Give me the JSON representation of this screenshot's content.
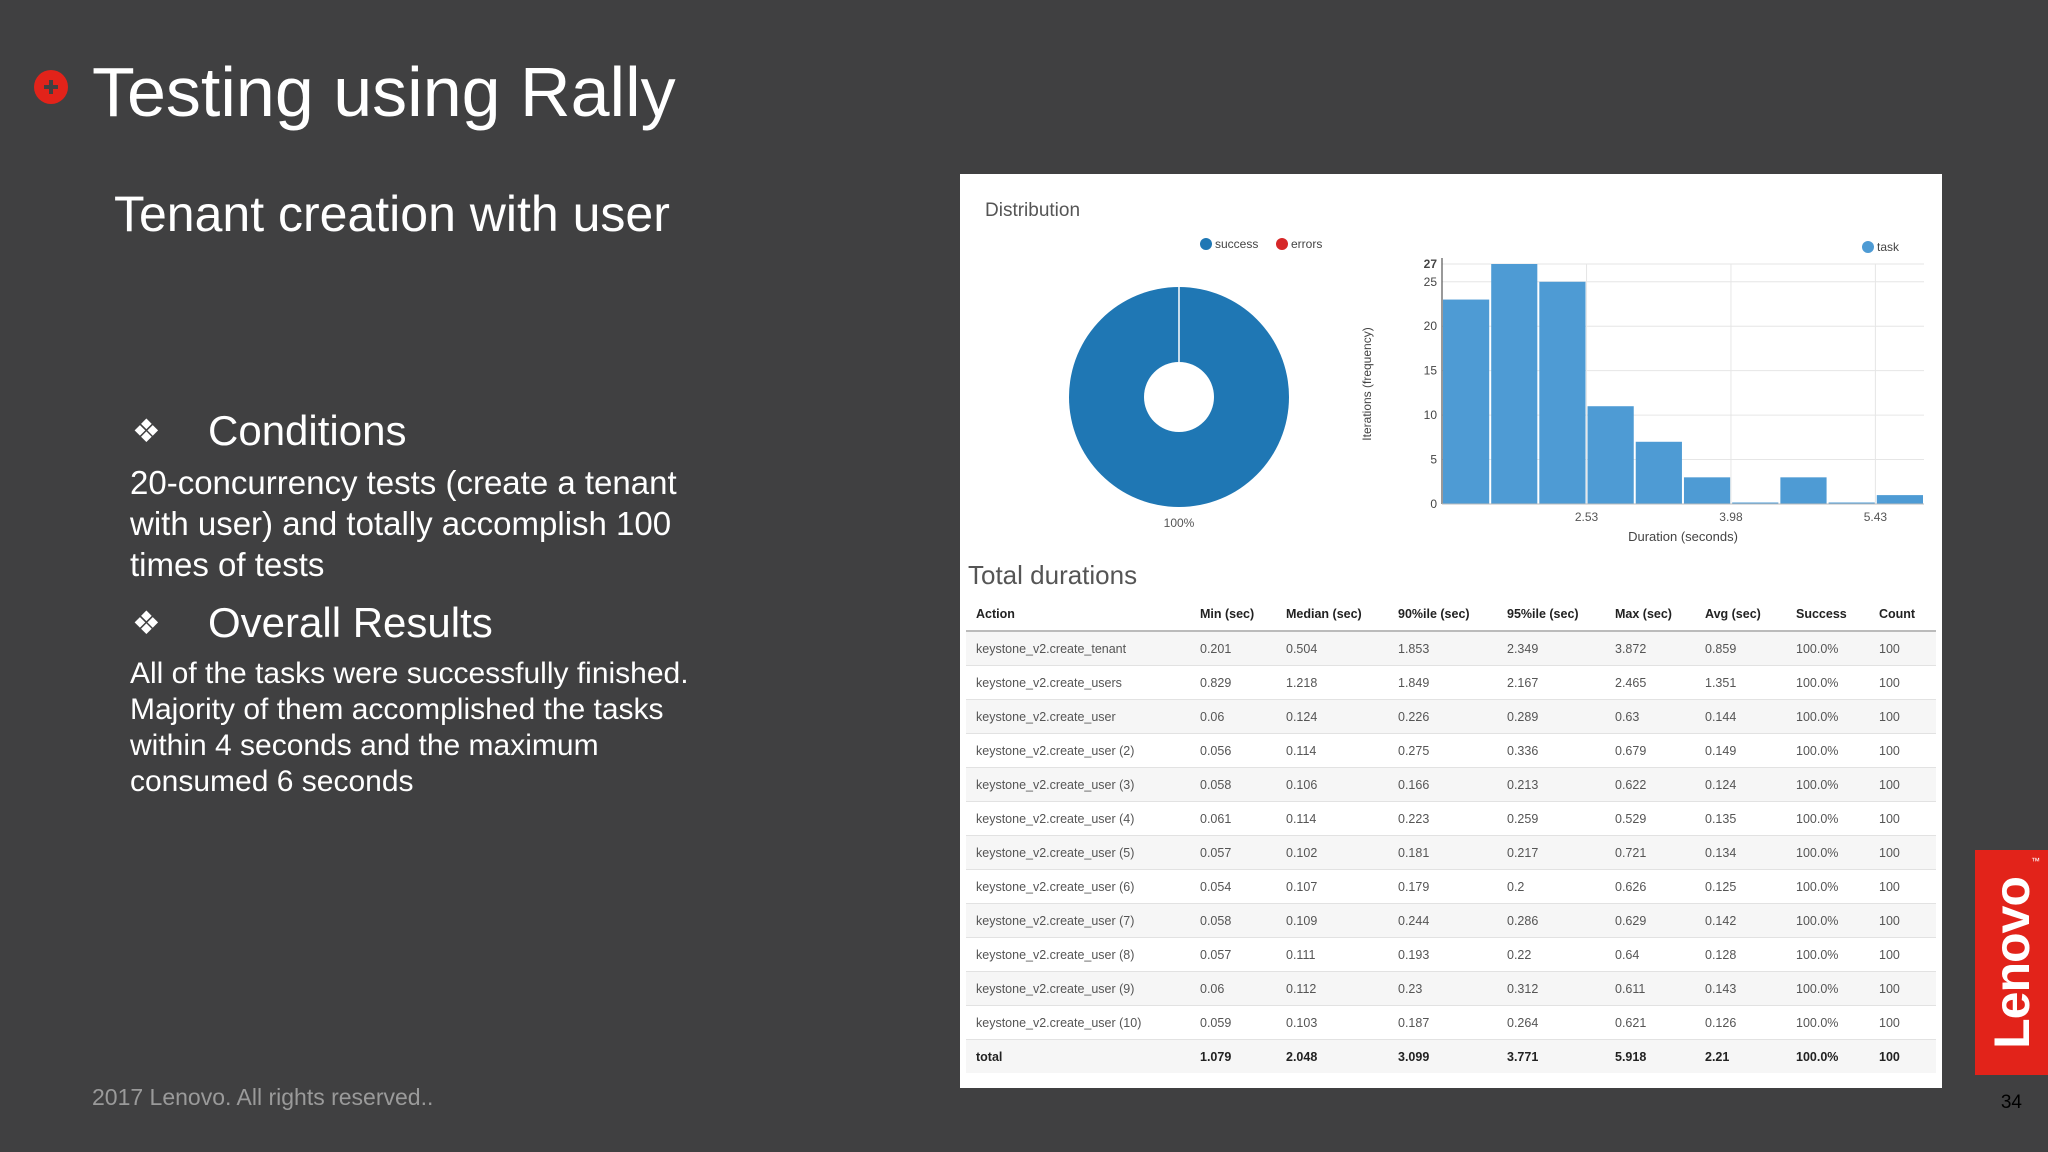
{
  "slide": {
    "title": "Testing using Rally",
    "subtitle": "Tenant creation with user",
    "conditions_heading": "Conditions",
    "conditions_text": "20-concurrency tests (create a tenant with user) and totally accomplish 100 times of tests",
    "results_heading": "Overall Results",
    "results_text": "All of the tasks were successfully finished. Majority of them accomplished the tasks within 4 seconds and the maximum consumed 6 seconds",
    "bullet_symbol": "❖",
    "footer": "2017 Lenovo. All rights reserved..",
    "page_number": "34",
    "brand": "Lenovo",
    "brand_tm": "™",
    "colors": {
      "background": "#404041",
      "brand_red": "#e2231a"
    }
  },
  "panel": {
    "distribution_title": "Distribution",
    "total_durations_title": "Total durations"
  },
  "chart_data": [
    {
      "type": "pie",
      "legend": [
        "success",
        "errors"
      ],
      "legend_colors": [
        "#1f77b4",
        "#d62728"
      ],
      "slices": [
        {
          "name": "success",
          "value": 100,
          "color": "#1f77b4"
        },
        {
          "name": "errors",
          "value": 0,
          "color": "#d62728"
        }
      ],
      "slice_label": "100%",
      "legend_placement": "top"
    },
    {
      "type": "bar",
      "series": [
        {
          "name": "task",
          "color": "#4e9bd4",
          "values": [
            23,
            27,
            25,
            11,
            7,
            3,
            0,
            3,
            0,
            1
          ]
        }
      ],
      "bin_edges": [
        1.079,
        1.563,
        2.046,
        2.53,
        3.014,
        3.498,
        3.982,
        4.466,
        4.95,
        5.434,
        5.918
      ],
      "xtick_values": [
        2.53,
        3.98,
        5.43
      ],
      "xtick_labels": [
        "2.53",
        "3.98",
        "5.43"
      ],
      "ytick_values": [
        0,
        5,
        10,
        15,
        20,
        25,
        27
      ],
      "xlabel": "Duration (seconds)",
      "ylabel": "Iterations (frequency)",
      "ylim": [
        0,
        27
      ],
      "grid": true,
      "legend_placement": "top-right"
    },
    {
      "type": "table",
      "columns": [
        "Action",
        "Min (sec)",
        "Median (sec)",
        "90%ile (sec)",
        "95%ile (sec)",
        "Max (sec)",
        "Avg (sec)",
        "Success",
        "Count"
      ],
      "rows": [
        [
          "keystone_v2.create_tenant",
          "0.201",
          "0.504",
          "1.853",
          "2.349",
          "3.872",
          "0.859",
          "100.0%",
          "100"
        ],
        [
          "keystone_v2.create_users",
          "0.829",
          "1.218",
          "1.849",
          "2.167",
          "2.465",
          "1.351",
          "100.0%",
          "100"
        ],
        [
          "keystone_v2.create_user",
          "0.06",
          "0.124",
          "0.226",
          "0.289",
          "0.63",
          "0.144",
          "100.0%",
          "100"
        ],
        [
          "keystone_v2.create_user (2)",
          "0.056",
          "0.114",
          "0.275",
          "0.336",
          "0.679",
          "0.149",
          "100.0%",
          "100"
        ],
        [
          "keystone_v2.create_user (3)",
          "0.058",
          "0.106",
          "0.166",
          "0.213",
          "0.622",
          "0.124",
          "100.0%",
          "100"
        ],
        [
          "keystone_v2.create_user (4)",
          "0.061",
          "0.114",
          "0.223",
          "0.259",
          "0.529",
          "0.135",
          "100.0%",
          "100"
        ],
        [
          "keystone_v2.create_user (5)",
          "0.057",
          "0.102",
          "0.181",
          "0.217",
          "0.721",
          "0.134",
          "100.0%",
          "100"
        ],
        [
          "keystone_v2.create_user (6)",
          "0.054",
          "0.107",
          "0.179",
          "0.2",
          "0.626",
          "0.125",
          "100.0%",
          "100"
        ],
        [
          "keystone_v2.create_user (7)",
          "0.058",
          "0.109",
          "0.244",
          "0.286",
          "0.629",
          "0.142",
          "100.0%",
          "100"
        ],
        [
          "keystone_v2.create_user (8)",
          "0.057",
          "0.111",
          "0.193",
          "0.22",
          "0.64",
          "0.128",
          "100.0%",
          "100"
        ],
        [
          "keystone_v2.create_user (9)",
          "0.06",
          "0.112",
          "0.23",
          "0.312",
          "0.611",
          "0.143",
          "100.0%",
          "100"
        ],
        [
          "keystone_v2.create_user (10)",
          "0.059",
          "0.103",
          "0.187",
          "0.264",
          "0.621",
          "0.126",
          "100.0%",
          "100"
        ]
      ],
      "total_row": [
        "total",
        "1.079",
        "2.048",
        "3.099",
        "3.771",
        "5.918",
        "2.21",
        "100.0%",
        "100"
      ]
    }
  ]
}
